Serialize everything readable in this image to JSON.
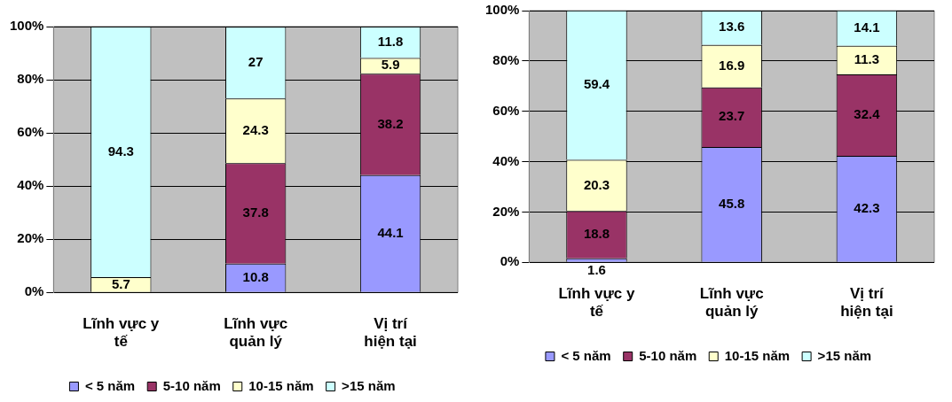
{
  "chart_data": [
    {
      "type": "bar",
      "stacked": true,
      "categories": [
        "Lĩnh vực y tế",
        "Lĩnh vực quản lý",
        "Vị trí hiện tại"
      ],
      "series": [
        {
          "name": "< 5 năm",
          "color": "#9999ff",
          "values": [
            null,
            10.8,
            44.1
          ]
        },
        {
          "name": "5-10 năm",
          "color": "#993366",
          "values": [
            null,
            37.8,
            38.2
          ]
        },
        {
          "name": "10-15 năm",
          "color": "#ffffcc",
          "values": [
            5.7,
            24.3,
            5.9
          ]
        },
        {
          "name": ">15 năm",
          "color": "#ccffff",
          "values": [
            94.3,
            27,
            11.8
          ]
        }
      ],
      "ylim": [
        0,
        100
      ],
      "yticks": [
        {
          "value": 0,
          "label": "0%"
        },
        {
          "value": 20,
          "label": "20%"
        },
        {
          "value": 40,
          "label": "40%"
        },
        {
          "value": 60,
          "label": "60%"
        },
        {
          "value": 80,
          "label": "80%"
        },
        {
          "value": 100,
          "label": "100%"
        }
      ],
      "grid": "y",
      "legend": "bottom",
      "data_labels": true
    },
    {
      "type": "bar",
      "stacked": true,
      "categories": [
        "Lĩnh vực y tế",
        "Lĩnh vực quản lý",
        "Vị trí hiện tại"
      ],
      "series": [
        {
          "name": "< 5 năm",
          "color": "#9999ff",
          "values": [
            1.6,
            45.8,
            42.3
          ]
        },
        {
          "name": "5-10 năm",
          "color": "#993366",
          "values": [
            18.8,
            23.7,
            32.4
          ]
        },
        {
          "name": "10-15 năm",
          "color": "#ffffcc",
          "values": [
            20.3,
            16.9,
            11.3
          ]
        },
        {
          "name": ">15 năm",
          "color": "#ccffff",
          "values": [
            59.4,
            13.6,
            14.1
          ]
        }
      ],
      "ylim": [
        0,
        100
      ],
      "yticks": [
        {
          "value": 0,
          "label": "0%"
        },
        {
          "value": 20,
          "label": "20%"
        },
        {
          "value": 40,
          "label": "40%"
        },
        {
          "value": 60,
          "label": "60%"
        },
        {
          "value": 80,
          "label": "80%"
        },
        {
          "value": 100,
          "label": "100%"
        }
      ],
      "grid": "y",
      "legend": "bottom",
      "data_labels": true
    }
  ]
}
